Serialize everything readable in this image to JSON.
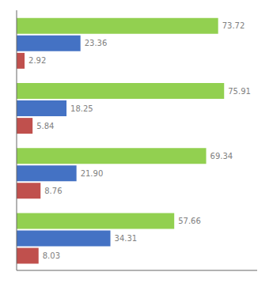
{
  "chart_data": {
    "type": "bar",
    "orientation": "horizontal",
    "categories": [
      null,
      null,
      null,
      null
    ],
    "series": [
      {
        "color": "#92d050",
        "values": [
          73.72,
          75.91,
          69.34,
          57.66
        ],
        "value_labels": [
          "73.72",
          "75.91",
          "69.34",
          "57.66"
        ]
      },
      {
        "color": "#4472c4",
        "values": [
          23.36,
          18.25,
          21.9,
          34.31
        ],
        "value_labels": [
          "23.36",
          "18.25",
          "21.90",
          "34.31"
        ]
      },
      {
        "color": "#c0504d",
        "values": [
          2.92,
          5.84,
          8.76,
          8.03
        ],
        "value_labels": [
          "2.92",
          "5.84",
          "8.76",
          "8.03"
        ]
      }
    ],
    "xlim": [
      0,
      88
    ],
    "xticks": [],
    "grid": false,
    "data_labels": true,
    "tick_labels": false
  }
}
